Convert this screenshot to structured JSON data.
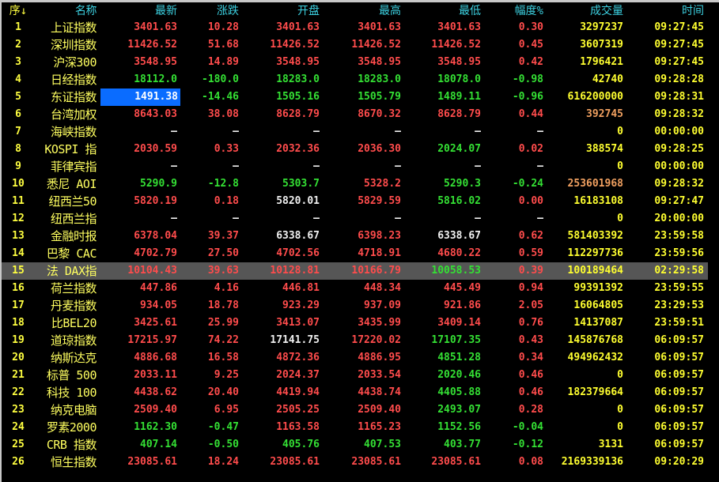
{
  "headers": [
    "序↓",
    "名称",
    "最新",
    "涨跌",
    "开盘",
    "最高",
    "最低",
    "幅度%",
    "成交量",
    "时间"
  ],
  "colors": {
    "up": "#ff4c4c",
    "down": "#34e034",
    "flat": "#f0f0f0",
    "volume": "#ffff30",
    "volume_alt": "#f0a060",
    "selected_cell": "#0a6cff",
    "selected_row": "#565656",
    "header": "#3cd0e0"
  },
  "selected_row": 15,
  "rows": [
    {
      "seq": "1",
      "name": "上证指数",
      "vals": [
        "3401.63",
        "10.28",
        "3401.63",
        "3401.63",
        "3401.63",
        "0.30",
        "3297237",
        "09:27:45"
      ],
      "col": "rrrrrry"
    },
    {
      "seq": "2",
      "name": "深圳指数",
      "vals": [
        "11426.52",
        "51.68",
        "11426.52",
        "11426.52",
        "11426.52",
        "0.45",
        "3607319",
        "09:27:45"
      ],
      "col": "rrrrrry"
    },
    {
      "seq": "3",
      "name": "沪深300",
      "vals": [
        "3548.95",
        "14.89",
        "3548.95",
        "3548.95",
        "3548.95",
        "0.42",
        "1796421",
        "09:27:45"
      ],
      "col": "rrrrrry"
    },
    {
      "seq": "4",
      "name": "日经指数",
      "vals": [
        "18112.0",
        "-180.0",
        "18283.0",
        "18283.0",
        "18078.0",
        "-0.98",
        "42740",
        "09:28:28"
      ],
      "col": "ggggggy"
    },
    {
      "seq": "5",
      "name": "东证指数",
      "vals": [
        "1491.38",
        "-14.46",
        "1505.16",
        "1505.79",
        "1489.11",
        "-0.96",
        "616200000",
        "09:28:31"
      ],
      "col": "wggggggy"
    },
    {
      "seq": "6",
      "name": "台湾加权",
      "vals": [
        "8643.03",
        "38.08",
        "8628.79",
        "8670.32",
        "8628.79",
        "0.44",
        "392745",
        "09:28:32"
      ],
      "col": "rrrrrro"
    },
    {
      "seq": "7",
      "name": "海峡指数",
      "vals": [
        "—",
        "—",
        "—",
        "—",
        "—",
        "—",
        "0",
        "00:00:00"
      ],
      "col": "wwwwwwy"
    },
    {
      "seq": "8",
      "name": "KOSPI 指",
      "vals": [
        "2030.59",
        "0.33",
        "2032.36",
        "2036.30",
        "2024.07",
        "0.02",
        "388574",
        "09:28:25"
      ],
      "col": "rrrrgry"
    },
    {
      "seq": "9",
      "name": "菲律宾指",
      "vals": [
        "—",
        "—",
        "—",
        "—",
        "—",
        "—",
        "0",
        "00:00:00"
      ],
      "col": "wwwwwwy"
    },
    {
      "seq": "10",
      "name": "悉尼 AOI",
      "vals": [
        "5290.9",
        "-12.8",
        "5303.7",
        "5328.2",
        "5290.3",
        "-0.24",
        "253601968",
        "09:28:32"
      ],
      "col": "gggrggo"
    },
    {
      "seq": "11",
      "name": "纽西兰50",
      "vals": [
        "5820.19",
        "0.18",
        "5820.01",
        "5829.59",
        "5816.02",
        "0.00",
        "16183108",
        "09:27:47"
      ],
      "col": "rrwrgry"
    },
    {
      "seq": "12",
      "name": "纽西兰指",
      "vals": [
        "—",
        "—",
        "—",
        "—",
        "—",
        "—",
        "0",
        "20:00:00"
      ],
      "col": "wwwwwwy"
    },
    {
      "seq": "13",
      "name": "金融时报",
      "vals": [
        "6378.04",
        "39.37",
        "6338.67",
        "6398.23",
        "6338.67",
        "0.62",
        "581403392",
        "23:59:58"
      ],
      "col": "rrwrwry"
    },
    {
      "seq": "14",
      "name": "巴黎 CAC",
      "vals": [
        "4702.79",
        "27.50",
        "4702.56",
        "4718.91",
        "4680.22",
        "0.59",
        "112297736",
        "23:59:56"
      ],
      "col": "rrrrrry"
    },
    {
      "seq": "15",
      "name": "法 DAX指",
      "vals": [
        "10104.43",
        "39.63",
        "10128.81",
        "10166.79",
        "10058.53",
        "0.39",
        "100189464",
        "02:29:58"
      ],
      "col": "rrrrgry"
    },
    {
      "seq": "16",
      "name": "荷兰指数",
      "vals": [
        "447.86",
        "4.16",
        "446.81",
        "448.34",
        "445.49",
        "0.94",
        "99391392",
        "23:59:55"
      ],
      "col": "rrrrrry"
    },
    {
      "seq": "17",
      "name": "丹麦指数",
      "vals": [
        "934.05",
        "18.78",
        "923.29",
        "937.09",
        "921.86",
        "2.05",
        "16064805",
        "23:29:53"
      ],
      "col": "rrrrrry"
    },
    {
      "seq": "18",
      "name": "比BEL20",
      "vals": [
        "3425.61",
        "25.99",
        "3413.07",
        "3435.99",
        "3409.14",
        "0.76",
        "14137087",
        "23:59:51"
      ],
      "col": "rrrrrry"
    },
    {
      "seq": "19",
      "name": "道琼指数",
      "vals": [
        "17215.97",
        "74.22",
        "17141.75",
        "17220.02",
        "17107.35",
        "0.43",
        "145876768",
        "06:09:57"
      ],
      "col": "rrwrgry"
    },
    {
      "seq": "20",
      "name": "纳斯达克",
      "vals": [
        "4886.68",
        "16.58",
        "4872.36",
        "4886.95",
        "4851.28",
        "0.34",
        "494962432",
        "06:09:57"
      ],
      "col": "rrrrgry"
    },
    {
      "seq": "21",
      "name": "标普 500",
      "vals": [
        "2033.11",
        "9.25",
        "2024.37",
        "2033.54",
        "2020.46",
        "0.46",
        "0",
        "06:09:57"
      ],
      "col": "rrrrgry"
    },
    {
      "seq": "22",
      "name": "科技 100",
      "vals": [
        "4438.62",
        "20.40",
        "4419.94",
        "4438.74",
        "4405.88",
        "0.46",
        "182379664",
        "06:09:57"
      ],
      "col": "rrrrgry"
    },
    {
      "seq": "23",
      "name": "纳克电脑",
      "vals": [
        "2509.40",
        "6.95",
        "2505.25",
        "2509.40",
        "2493.07",
        "0.28",
        "0",
        "06:09:57"
      ],
      "col": "rrrrgry"
    },
    {
      "seq": "24",
      "name": "罗素2000",
      "vals": [
        "1162.30",
        "-0.47",
        "1163.58",
        "1165.23",
        "1152.56",
        "-0.04",
        "0",
        "06:09:57"
      ],
      "col": "ggrrggy"
    },
    {
      "seq": "25",
      "name": "CRB 指数",
      "vals": [
        "407.14",
        "-0.50",
        "405.76",
        "407.53",
        "403.77",
        "-0.12",
        "3131",
        "06:09:57"
      ],
      "col": "ggggggy"
    },
    {
      "seq": "26",
      "name": "恒生指数",
      "vals": [
        "23085.61",
        "18.24",
        "23085.61",
        "23085.61",
        "23085.61",
        "0.08",
        "2169339136",
        "09:20:29"
      ],
      "col": "rrrrrry"
    }
  ]
}
